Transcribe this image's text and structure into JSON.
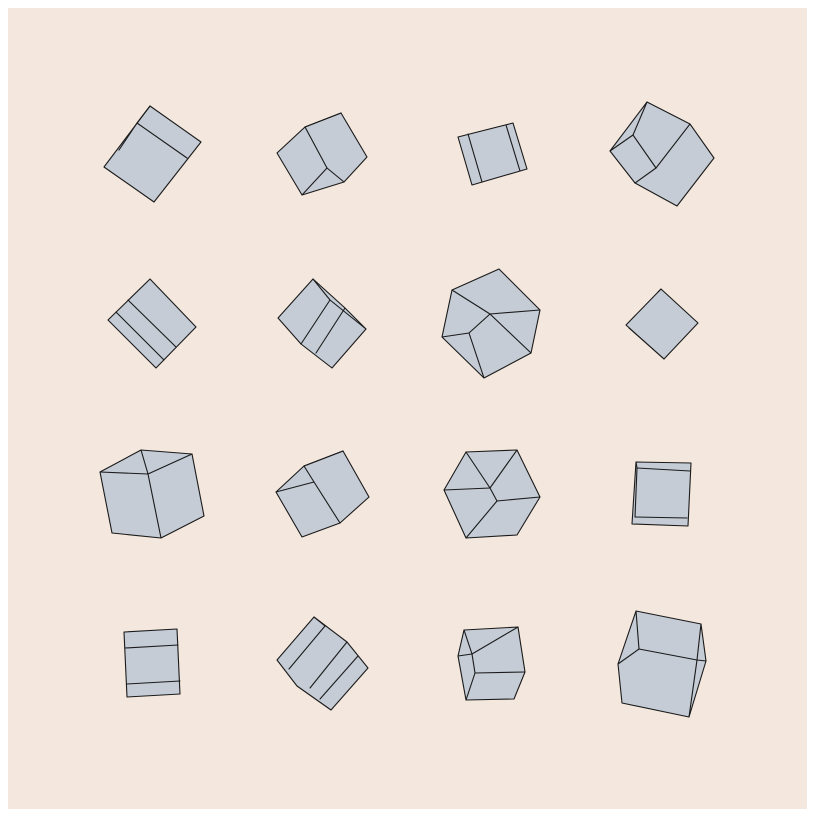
{
  "colors": {
    "background": "#f4e7dd",
    "cube_fill": "#c5ccd6",
    "cube_stroke": "#1a1a1a"
  },
  "grid": {
    "rows": 4,
    "columns": 4,
    "cube_count": 16
  }
}
